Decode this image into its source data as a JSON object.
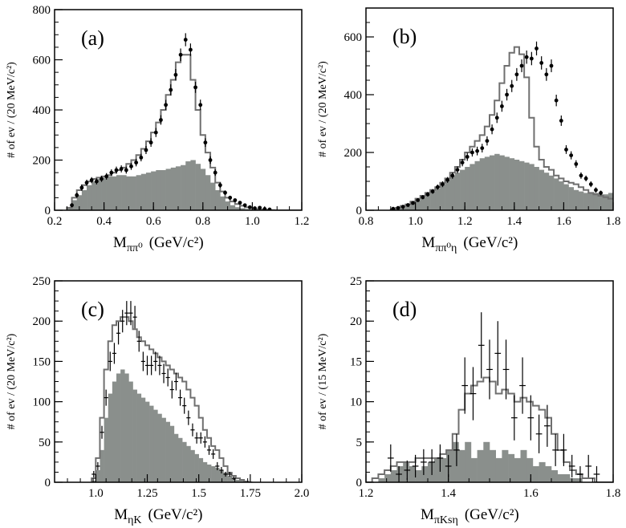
{
  "colors": {
    "fill": "#8a8f8c",
    "line": "#6f6f6f",
    "frame": "#000000"
  },
  "chart_data": [
    {
      "type": "histogram",
      "panel_label": "(a)",
      "xlabel_main": "M",
      "xlabel_sub": "ππ⁰",
      "xlabel_unit": "(GeV/c²)",
      "ylabel": "# of ev / (20 MeV/c²)",
      "xlim": [
        0.2,
        1.2
      ],
      "ylim": [
        0,
        800
      ],
      "xticks": [
        0.2,
        0.4,
        0.6,
        0.8,
        1.0,
        1.2
      ],
      "xtick_labels": [
        "0.2",
        "0.4",
        "0.6",
        "0.8",
        "1.0",
        "1.2"
      ],
      "yticks": [
        0,
        200,
        400,
        600,
        800
      ],
      "ytick_labels": [
        "0",
        "200",
        "400",
        "600",
        "800"
      ],
      "bin_width": 0.02,
      "bin_start": 0.25,
      "background": [
        8,
        40,
        60,
        80,
        100,
        115,
        125,
        130,
        135,
        135,
        140,
        140,
        135,
        135,
        140,
        145,
        150,
        155,
        160,
        160,
        165,
        170,
        175,
        180,
        195,
        200,
        185,
        165,
        140,
        110,
        80,
        55,
        35,
        20,
        12,
        8,
        5,
        3,
        2,
        0,
        0,
        0,
        0,
        0,
        0,
        0,
        0,
        0
      ],
      "fit": [
        10,
        50,
        80,
        100,
        115,
        125,
        130,
        135,
        140,
        150,
        160,
        170,
        185,
        200,
        220,
        245,
        275,
        310,
        350,
        400,
        460,
        520,
        590,
        620,
        620,
        520,
        400,
        300,
        230,
        170,
        110,
        75,
        50,
        35,
        25,
        18,
        12,
        8,
        5,
        3,
        2,
        1,
        0,
        0,
        0,
        0,
        0,
        0
      ],
      "points_x": [
        0.27,
        0.29,
        0.31,
        0.33,
        0.35,
        0.37,
        0.39,
        0.41,
        0.43,
        0.45,
        0.47,
        0.49,
        0.51,
        0.53,
        0.55,
        0.57,
        0.59,
        0.61,
        0.63,
        0.65,
        0.67,
        0.69,
        0.71,
        0.73,
        0.75,
        0.77,
        0.79,
        0.81,
        0.83,
        0.85,
        0.87,
        0.89,
        0.91,
        0.93,
        0.95,
        0.97,
        0.99,
        1.01,
        1.03,
        1.05,
        1.07
      ],
      "points_y": [
        20,
        60,
        90,
        110,
        120,
        115,
        125,
        135,
        150,
        160,
        165,
        160,
        175,
        190,
        210,
        240,
        270,
        310,
        360,
        420,
        480,
        540,
        620,
        680,
        640,
        490,
        420,
        270,
        200,
        150,
        100,
        70,
        50,
        40,
        30,
        20,
        12,
        8,
        10,
        5,
        3
      ],
      "points_err": [
        8,
        10,
        12,
        12,
        12,
        12,
        12,
        13,
        13,
        14,
        14,
        14,
        14,
        15,
        15,
        16,
        17,
        18,
        19,
        20,
        22,
        23,
        25,
        26,
        25,
        22,
        21,
        17,
        15,
        13,
        11,
        9,
        8,
        7,
        6,
        5,
        4,
        3,
        3,
        3,
        2
      ],
      "point_style": "dot"
    },
    {
      "type": "histogram",
      "panel_label": "(b)",
      "xlabel_main": "M",
      "xlabel_sub": "ππ⁰η",
      "xlabel_unit": "(GeV/c²)",
      "ylabel": "# of ev / (20 MeV/c²)",
      "xlim": [
        0.8,
        1.8
      ],
      "ylim": [
        0,
        700
      ],
      "xticks": [
        0.8,
        1.0,
        1.2,
        1.4,
        1.6,
        1.8
      ],
      "xtick_labels": [
        "0.8",
        "1.0",
        "1.2",
        "1.4",
        "1.6",
        "1.8"
      ],
      "yticks": [
        0,
        200,
        400,
        600
      ],
      "ytick_labels": [
        "0",
        "200",
        "400",
        "600"
      ],
      "bin_width": 0.02,
      "bin_start": 0.9,
      "background": [
        2,
        5,
        10,
        15,
        25,
        35,
        45,
        55,
        65,
        75,
        90,
        105,
        120,
        130,
        140,
        150,
        160,
        170,
        180,
        185,
        190,
        195,
        190,
        185,
        180,
        175,
        170,
        165,
        160,
        150,
        140,
        130,
        120,
        110,
        100,
        90,
        80,
        70,
        65,
        60,
        60,
        60,
        55,
        55,
        60
      ],
      "fit": [
        3,
        8,
        15,
        20,
        30,
        40,
        50,
        60,
        70,
        80,
        95,
        110,
        130,
        150,
        175,
        200,
        220,
        240,
        260,
        290,
        330,
        380,
        440,
        500,
        545,
        565,
        540,
        460,
        320,
        220,
        175,
        150,
        140,
        120,
        110,
        100,
        95,
        90,
        80,
        70,
        60,
        55,
        50,
        45,
        40
      ],
      "points_x": [
        0.91,
        0.93,
        0.95,
        0.97,
        0.99,
        1.01,
        1.03,
        1.05,
        1.07,
        1.09,
        1.11,
        1.13,
        1.15,
        1.17,
        1.19,
        1.21,
        1.23,
        1.25,
        1.27,
        1.29,
        1.31,
        1.33,
        1.35,
        1.37,
        1.39,
        1.41,
        1.43,
        1.45,
        1.47,
        1.49,
        1.51,
        1.53,
        1.55,
        1.57,
        1.59,
        1.61,
        1.63,
        1.65,
        1.67,
        1.69,
        1.71,
        1.73,
        1.75
      ],
      "points_y": [
        5,
        8,
        12,
        18,
        25,
        35,
        45,
        55,
        65,
        80,
        90,
        105,
        120,
        140,
        165,
        185,
        200,
        205,
        215,
        240,
        280,
        320,
        360,
        400,
        430,
        470,
        500,
        530,
        525,
        560,
        510,
        470,
        500,
        380,
        310,
        210,
        190,
        160,
        120,
        110,
        90,
        70,
        60
      ],
      "points_err": [
        3,
        3,
        4,
        5,
        5,
        6,
        7,
        8,
        8,
        9,
        10,
        10,
        11,
        12,
        13,
        14,
        14,
        15,
        15,
        16,
        17,
        18,
        19,
        20,
        21,
        22,
        22,
        23,
        23,
        24,
        23,
        22,
        22,
        20,
        18,
        15,
        14,
        13,
        11,
        10,
        10,
        9,
        8
      ],
      "point_style": "dot"
    },
    {
      "type": "histogram",
      "panel_label": "(c)",
      "xlabel_main": "M",
      "xlabel_sub": "ηK",
      "xlabel_unit": "(GeV/c²)",
      "ylabel": "# of ev / (20 MeV/c²)",
      "xlim": [
        0.8,
        2.0
      ],
      "ylim": [
        0,
        250
      ],
      "xticks": [
        1.0,
        1.25,
        1.5,
        1.75,
        2.0
      ],
      "xtick_labels": [
        "1.0",
        "1.25",
        "1.5",
        "1.75",
        "2.0"
      ],
      "yticks": [
        0,
        50,
        100,
        150,
        200,
        250
      ],
      "ytick_labels": [
        "0",
        "50",
        "100",
        "150",
        "200",
        "250"
      ],
      "bin_width": 0.02,
      "bin_start": 0.98,
      "background": [
        2,
        15,
        40,
        80,
        110,
        125,
        135,
        140,
        135,
        125,
        115,
        110,
        105,
        100,
        95,
        90,
        85,
        80,
        75,
        70,
        60,
        55,
        50,
        45,
        40,
        35,
        30,
        25,
        22,
        20,
        18,
        15,
        12,
        8,
        5,
        3,
        2,
        0,
        0
      ],
      "fit": [
        5,
        30,
        80,
        140,
        175,
        195,
        200,
        205,
        205,
        200,
        190,
        180,
        175,
        170,
        165,
        160,
        155,
        150,
        145,
        140,
        135,
        130,
        125,
        115,
        105,
        95,
        80,
        65,
        55,
        45,
        40,
        30,
        20,
        12,
        8,
        5,
        3,
        1,
        0
      ],
      "points_x": [
        0.99,
        1.01,
        1.03,
        1.05,
        1.07,
        1.09,
        1.11,
        1.13,
        1.15,
        1.17,
        1.19,
        1.21,
        1.23,
        1.25,
        1.27,
        1.29,
        1.31,
        1.33,
        1.35,
        1.37,
        1.39,
        1.41,
        1.43,
        1.45,
        1.47,
        1.49,
        1.51,
        1.53,
        1.55,
        1.57,
        1.59,
        1.61,
        1.63,
        1.65,
        1.67
      ],
      "points_y": [
        10,
        20,
        62,
        105,
        150,
        160,
        185,
        200,
        210,
        210,
        205,
        175,
        150,
        145,
        145,
        150,
        145,
        135,
        130,
        115,
        125,
        105,
        95,
        80,
        65,
        55,
        55,
        50,
        40,
        35,
        20,
        15,
        10,
        10,
        5
      ],
      "points_err": [
        4,
        5,
        8,
        10,
        12,
        13,
        14,
        14,
        15,
        15,
        14,
        13,
        12,
        12,
        12,
        12,
        12,
        12,
        11,
        11,
        11,
        10,
        10,
        9,
        8,
        7,
        7,
        7,
        6,
        6,
        5,
        4,
        3,
        3,
        2
      ],
      "point_style": "cross"
    },
    {
      "type": "histogram",
      "panel_label": "(d)",
      "xlabel_main": "M",
      "xlabel_sub": "πKsη",
      "xlabel_unit": "(GeV/c²)",
      "ylabel": "# of ev / (15 MeV/c²)",
      "xlim": [
        1.2,
        1.8
      ],
      "ylim": [
        0,
        25
      ],
      "xticks": [
        1.2,
        1.4,
        1.6,
        1.8
      ],
      "xtick_labels": [
        "1.2",
        "1.4",
        "1.6",
        "1.8"
      ],
      "yticks": [
        0,
        5,
        10,
        15,
        20,
        25
      ],
      "ytick_labels": [
        "0",
        "5",
        "10",
        "15",
        "20",
        "25"
      ],
      "bin_width": 0.015,
      "bin_start": 1.2,
      "background": [
        0,
        0,
        0.5,
        1,
        1.5,
        2,
        2.5,
        2,
        1.5,
        2,
        2.5,
        3,
        3,
        4,
        5,
        4,
        5,
        3,
        4,
        5,
        4,
        3,
        4,
        3.5,
        3,
        4,
        3,
        2,
        2.5,
        2,
        1.5,
        1,
        1,
        0.5,
        0.5,
        0,
        0,
        0,
        0,
        0
      ],
      "fit": [
        0,
        0.5,
        1,
        1.5,
        2,
        2.5,
        2.5,
        2.5,
        3,
        3,
        3,
        3,
        3.5,
        4,
        6,
        9,
        11,
        12,
        12.5,
        13,
        12.5,
        11,
        11.5,
        11,
        10,
        10.5,
        10,
        9.5,
        9,
        8,
        6,
        4,
        2.5,
        1.5,
        1,
        0.5,
        0.5,
        0,
        0,
        0
      ],
      "points_x": [
        1.26,
        1.28,
        1.3,
        1.32,
        1.34,
        1.36,
        1.38,
        1.4,
        1.42,
        1.44,
        1.46,
        1.48,
        1.5,
        1.52,
        1.54,
        1.56,
        1.58,
        1.6,
        1.62,
        1.64,
        1.66,
        1.68,
        1.7,
        1.72,
        1.74,
        1.76
      ],
      "points_y": [
        3,
        1,
        1.5,
        2,
        2.5,
        2.5,
        3,
        2,
        4,
        12,
        11,
        17,
        14,
        16,
        14,
        8,
        12,
        8,
        6,
        7,
        4,
        4,
        2,
        1,
        2,
        1
      ],
      "points_err": [
        1.7,
        1,
        1.2,
        1.4,
        1.6,
        1.6,
        1.7,
        1.4,
        2,
        3.5,
        3.3,
        4.1,
        3.7,
        4,
        3.7,
        2.8,
        3.5,
        2.8,
        2.4,
        2.6,
        2,
        2,
        1.4,
        1,
        1.4,
        1
      ],
      "point_style": "cross"
    }
  ]
}
